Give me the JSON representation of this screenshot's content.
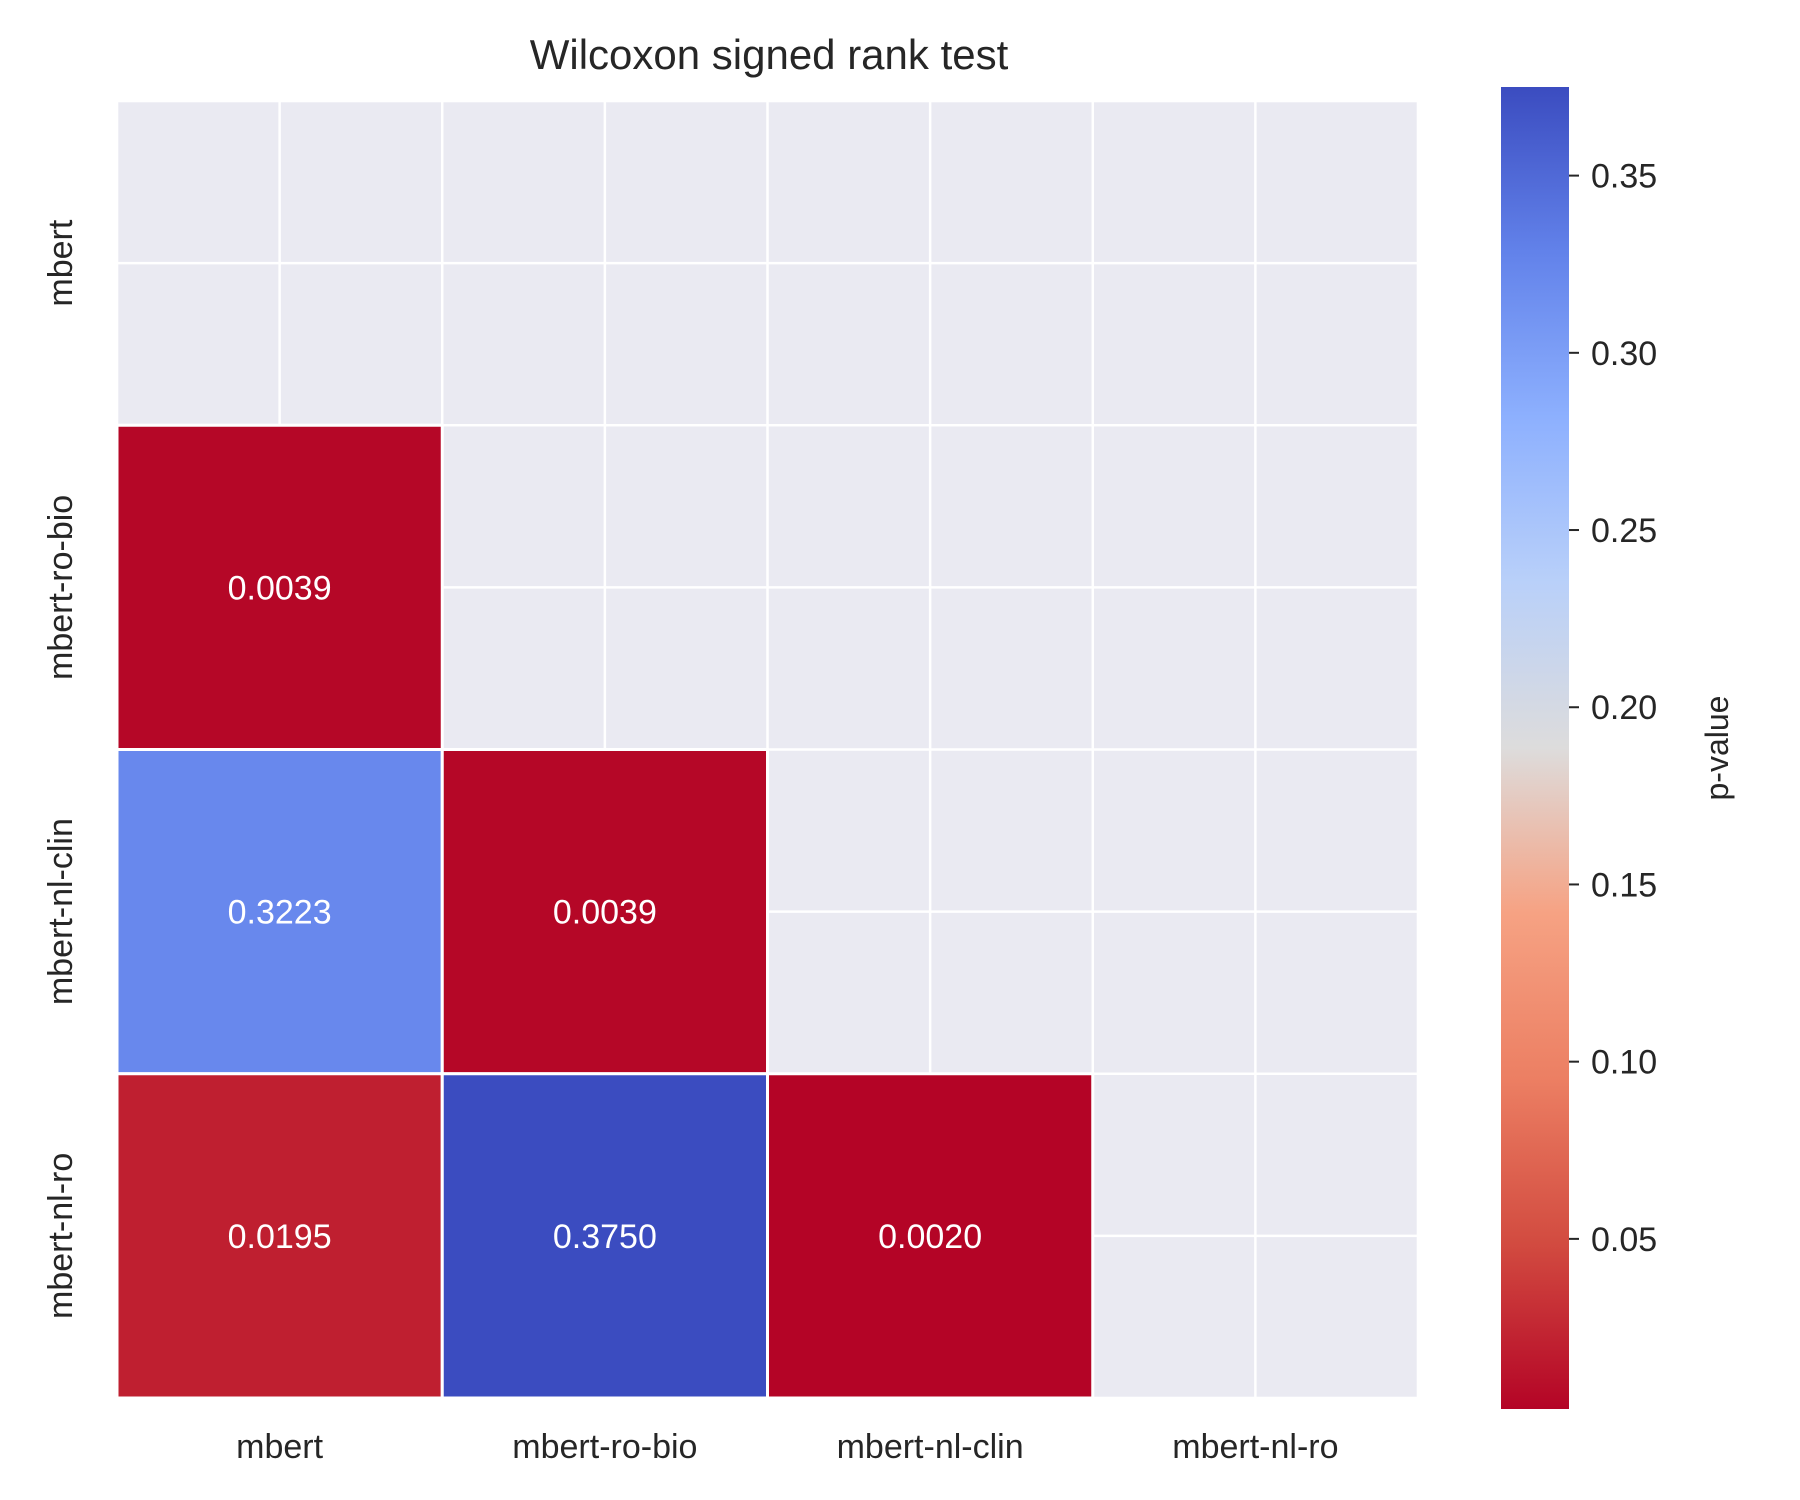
{
  "chart_data": {
    "type": "heatmap",
    "title": "Wilcoxon signed rank test",
    "rows": [
      "mbert",
      "mbert-ro-bio",
      "mbert-nl-clin",
      "mbert-nl-ro"
    ],
    "columns": [
      "mbert",
      "mbert-ro-bio",
      "mbert-nl-clin",
      "mbert-nl-ro"
    ],
    "values": [
      [
        null,
        null,
        null,
        null
      ],
      [
        0.0039,
        null,
        null,
        null
      ],
      [
        0.3223,
        0.0039,
        null,
        null
      ],
      [
        0.0195,
        0.375,
        0.002,
        null
      ]
    ],
    "labels": [
      [
        null,
        null,
        null,
        null
      ],
      [
        "0.0039",
        null,
        null,
        null
      ],
      [
        "0.3223",
        "0.0039",
        null,
        null
      ],
      [
        "0.0195",
        "0.3750",
        "0.0020",
        null
      ]
    ],
    "mask": "upper-triangle-and-diagonal",
    "colormap": "coolwarm_r",
    "colorbar": {
      "label": "p-value",
      "range": [
        0.002,
        0.375
      ],
      "ticks": [
        0.05,
        0.1,
        0.15,
        0.2,
        0.25,
        0.3,
        0.35
      ],
      "tick_labels": [
        "0.05",
        "0.10",
        "0.15",
        "0.20",
        "0.25",
        "0.30",
        "0.35"
      ]
    },
    "background_color": "#eaeaf2",
    "grid": true
  }
}
